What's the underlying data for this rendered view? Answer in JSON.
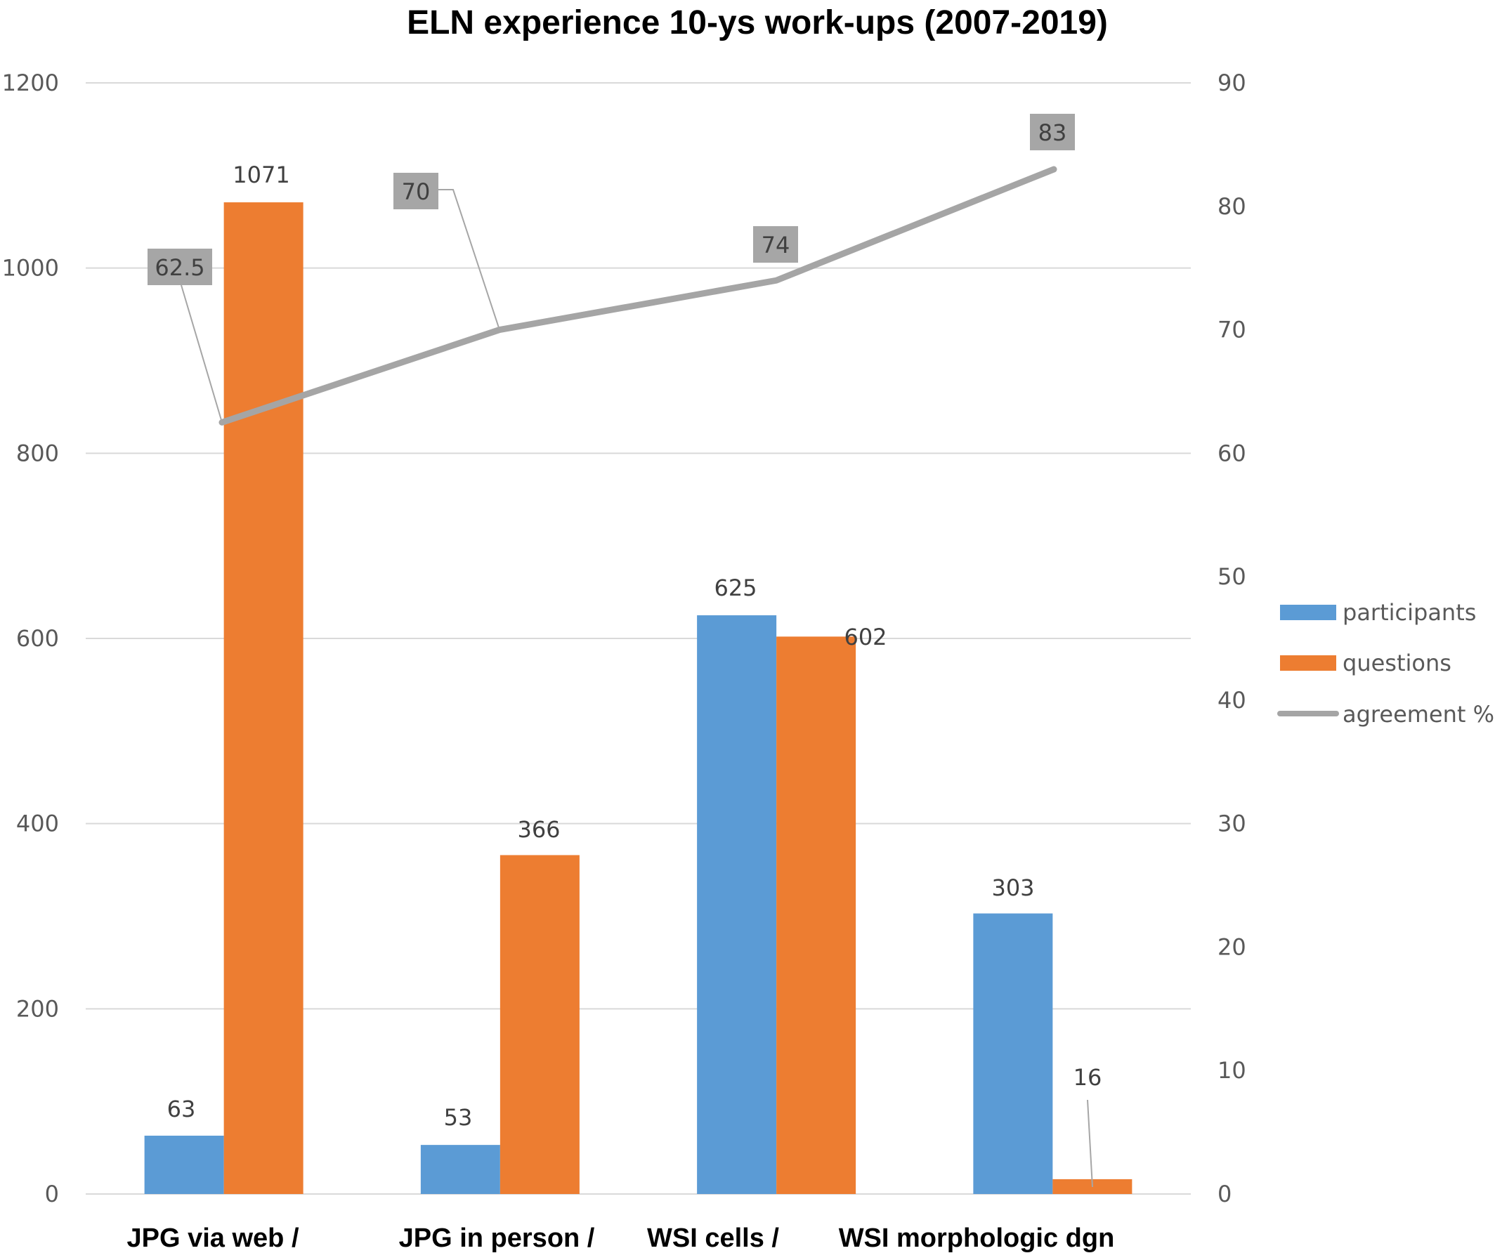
{
  "chart_data": {
    "type": "bar",
    "title": "ELN experience 10-ys work-ups (2007-2019)",
    "categories": [
      "JPG via web /",
      "JPG in person /",
      "WSI cells /",
      "WSI morphologic dgn"
    ],
    "series": [
      {
        "name": "participants",
        "type": "bar",
        "axis": "left",
        "color": "#5b9bd5",
        "values": [
          63,
          53,
          625,
          303
        ]
      },
      {
        "name": "questions",
        "type": "bar",
        "axis": "left",
        "color": "#ed7d31",
        "values": [
          1071,
          366,
          602,
          16
        ]
      },
      {
        "name": "agreement %",
        "type": "line",
        "axis": "right",
        "color": "#a5a5a5",
        "values": [
          62.5,
          70,
          74,
          83
        ]
      }
    ],
    "left_axis": {
      "range": [
        0,
        1200
      ],
      "ticks": [
        "0",
        "200",
        "400",
        "600",
        "800",
        "1000",
        "1200"
      ]
    },
    "right_axis": {
      "range": [
        0,
        90
      ],
      "ticks": [
        "0",
        "10",
        "20",
        "30",
        "40",
        "50",
        "60",
        "70",
        "80",
        "90"
      ]
    },
    "data_labels": {
      "participants": [
        "63",
        "53",
        "625",
        "303"
      ],
      "questions": [
        "1071",
        "366",
        "602",
        "16"
      ],
      "agreement": [
        "62.5",
        "70",
        "74",
        "83"
      ]
    },
    "grid": true,
    "legend_position": "right"
  }
}
